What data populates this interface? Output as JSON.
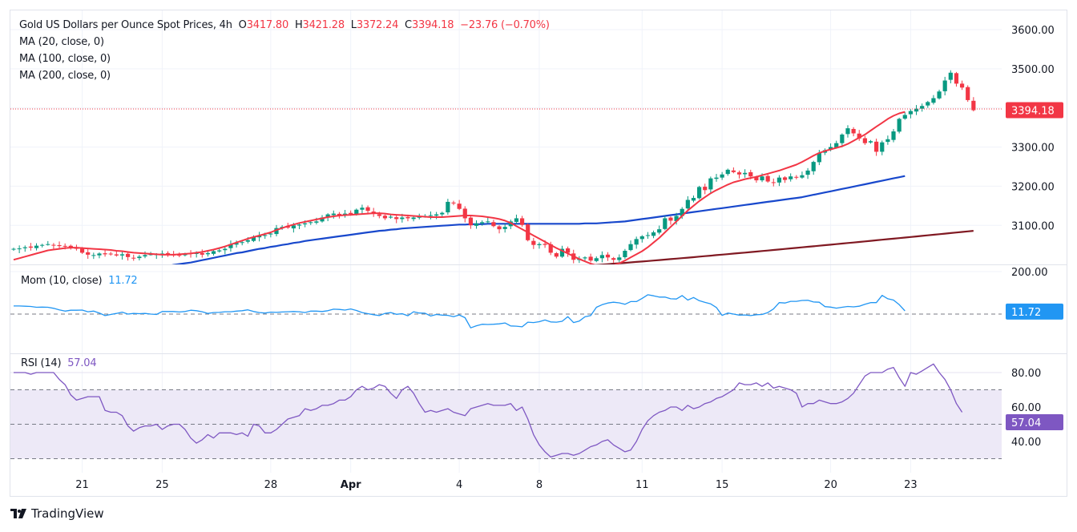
{
  "header": {
    "title": "Gold US Dollars per Ounce Spot Prices, 4h",
    "open_label": "O",
    "open": "3417.80",
    "high_label": "H",
    "high": "3421.28",
    "low_label": "L",
    "low": "3372.24",
    "close_label": "C",
    "close": "3394.18",
    "change": "−23.76 (−0.70%)",
    "indicators": [
      "MA (20, close, 0)",
      "MA (100, close, 0)",
      "MA (200, close, 0)"
    ]
  },
  "momentum": {
    "label": "Mom (10, close)",
    "value": "11.72"
  },
  "rsi": {
    "label": "RSI (14)",
    "value": "57.04"
  },
  "branding": {
    "name": "TradingView"
  },
  "colors": {
    "up": "#089981",
    "down": "#f23645",
    "ma20": "#f23645",
    "ma100": "#1848cc",
    "ma200": "#801922",
    "momentum": "#2196f3",
    "rsi": "#7e57c2",
    "rsi_band": "#ede9f7"
  },
  "chart_data": [
    {
      "type": "candlestick",
      "title": "Gold US Dollars per Ounce Spot Prices, 4h",
      "ylabel": "Price (USD)",
      "ylim": [
        3000,
        3620
      ],
      "yticks": [
        "3600.00",
        "3500.00",
        "3400.00",
        "3300.00",
        "3200.00",
        "3100.00"
      ],
      "yticks_visible": [
        "3600.00",
        "3500.00",
        "3300.00",
        "3200.00",
        "3100.00"
      ],
      "xticks": [
        {
          "label": "21",
          "bold": false,
          "index": 12
        },
        {
          "label": "25",
          "bold": false,
          "index": 26
        },
        {
          "label": "28",
          "bold": false,
          "index": 45
        },
        {
          "label": "Apr",
          "bold": true,
          "index": 59
        },
        {
          "label": "4",
          "bold": false,
          "index": 78
        },
        {
          "label": "8",
          "bold": false,
          "index": 92
        },
        {
          "label": "11",
          "bold": false,
          "index": 110
        },
        {
          "label": "15",
          "bold": false,
          "index": 124
        },
        {
          "label": "20",
          "bold": false,
          "index": 143
        },
        {
          "label": "23",
          "bold": false,
          "index": 157
        }
      ],
      "last_price": "3394.18",
      "closes": [
        3040,
        3041,
        3044,
        3043,
        3048,
        3050,
        3052,
        3050,
        3047,
        3046,
        3044,
        3040,
        3030,
        3025,
        3024,
        3028,
        3026,
        3027,
        3023,
        3026,
        3019,
        3017,
        3020,
        3024,
        3026,
        3026,
        3028,
        3027,
        3025,
        3023,
        3027,
        3028,
        3029,
        3025,
        3029,
        3034,
        3036,
        3040,
        3052,
        3055,
        3057,
        3062,
        3070,
        3074,
        3075,
        3079,
        3093,
        3096,
        3094,
        3100,
        3102,
        3105,
        3108,
        3110,
        3120,
        3128,
        3130,
        3125,
        3130,
        3129,
        3140,
        3145,
        3137,
        3129,
        3124,
        3118,
        3122,
        3116,
        3120,
        3118,
        3120,
        3122,
        3124,
        3126,
        3128,
        3132,
        3160,
        3156,
        3142,
        3118,
        3100,
        3105,
        3108,
        3110,
        3098,
        3090,
        3096,
        3110,
        3118,
        3101,
        3062,
        3050,
        3052,
        3050,
        3030,
        3020,
        3040,
        3030,
        3012,
        3015,
        3018,
        3010,
        3016,
        3024,
        3018,
        3012,
        3018,
        3035,
        3052,
        3065,
        3072,
        3075,
        3082,
        3090,
        3118,
        3112,
        3124,
        3142,
        3165,
        3170,
        3198,
        3190,
        3220,
        3222,
        3230,
        3242,
        3236,
        3230,
        3234,
        3225,
        3215,
        3225,
        3212,
        3210,
        3222,
        3216,
        3225,
        3222,
        3228,
        3240,
        3262,
        3285,
        3292,
        3300,
        3310,
        3332,
        3348,
        3335,
        3322,
        3310,
        3315,
        3288,
        3312,
        3320,
        3340,
        3372,
        3382,
        3392,
        3398,
        3405,
        3415,
        3425,
        3442,
        3470,
        3490,
        3462,
        3452,
        3420,
        3394.18
      ],
      "series": [
        {
          "name": "MA (20, close, 0)",
          "color": "#f23645"
        },
        {
          "name": "MA (100, close, 0)",
          "color": "#1848cc"
        },
        {
          "name": "MA (200, close, 0)",
          "color": "#801922"
        }
      ],
      "ma20": [
        3012,
        3016,
        3020,
        3024,
        3028,
        3032,
        3036,
        3038,
        3040,
        3042,
        3043,
        3043,
        3042,
        3041,
        3040,
        3039,
        3038,
        3037,
        3035,
        3034,
        3032,
        3030,
        3029,
        3028,
        3027,
        3026,
        3025,
        3025,
        3025,
        3026,
        3027,
        3028,
        3030,
        3032,
        3035,
        3038,
        3042,
        3046,
        3051,
        3056,
        3061,
        3066,
        3070,
        3074,
        3078,
        3082,
        3088,
        3093,
        3098,
        3102,
        3106,
        3109,
        3112,
        3115,
        3118,
        3121,
        3123,
        3125,
        3126,
        3127,
        3128,
        3129,
        3130,
        3131,
        3131,
        3130,
        3128,
        3127,
        3126,
        3125,
        3124,
        3123,
        3122,
        3121,
        3121,
        3121,
        3122,
        3123,
        3124,
        3125,
        3125,
        3124,
        3123,
        3121,
        3119,
        3116,
        3112,
        3106,
        3098,
        3090,
        3082,
        3074,
        3066,
        3058,
        3050,
        3042,
        3035,
        3028,
        3021,
        3014,
        3008,
        3002,
        2998,
        2996,
        2996,
        2998,
        3003,
        3010,
        3018,
        3026,
        3034,
        3044,
        3056,
        3068,
        3082,
        3096,
        3110,
        3124,
        3138,
        3150,
        3162,
        3172,
        3182,
        3190,
        3197,
        3204,
        3210,
        3214,
        3218,
        3221,
        3224,
        3228,
        3232,
        3236,
        3240,
        3245,
        3250,
        3255,
        3262,
        3270,
        3278,
        3285,
        3290,
        3294,
        3298,
        3302,
        3308,
        3316,
        3324,
        3332,
        3342,
        3352,
        3362,
        3372,
        3380,
        3386,
        3390
      ],
      "ma100": [
        2900,
        2902,
        2905,
        2908,
        2911,
        2914,
        2917,
        2920,
        2923,
        2926,
        2930,
        2934,
        2938,
        2942,
        2946,
        2950,
        2954,
        2958,
        2962,
        2966,
        2970,
        2974,
        2978,
        2982,
        2986,
        2990,
        2993,
        2996,
        2999,
        3001,
        3003,
        3005,
        3008,
        3011,
        3014,
        3017,
        3020,
        3023,
        3026,
        3029,
        3031,
        3034,
        3037,
        3040,
        3042,
        3045,
        3047,
        3050,
        3052,
        3055,
        3057,
        3060,
        3062,
        3064,
        3066,
        3068,
        3070,
        3072,
        3074,
        3076,
        3078,
        3080,
        3082,
        3084,
        3086,
        3087,
        3089,
        3090,
        3092,
        3093,
        3094,
        3095,
        3096,
        3097,
        3098,
        3099,
        3100,
        3101,
        3102,
        3102,
        3103,
        3103,
        3103,
        3104,
        3104,
        3104,
        3104,
        3104,
        3104,
        3104,
        3104,
        3104,
        3104,
        3104,
        3104,
        3104,
        3104,
        3104,
        3104,
        3104,
        3105,
        3105,
        3105,
        3106,
        3107,
        3108,
        3109,
        3110,
        3112,
        3114,
        3116,
        3118,
        3120,
        3122,
        3124,
        3126,
        3128,
        3130,
        3132,
        3134,
        3136,
        3138,
        3140,
        3142,
        3144,
        3146,
        3148,
        3150,
        3152,
        3154,
        3156,
        3158,
        3160,
        3162,
        3164,
        3166,
        3168,
        3170,
        3172,
        3175,
        3178,
        3181,
        3184,
        3187,
        3190,
        3193,
        3196,
        3199,
        3202,
        3205,
        3208,
        3211,
        3214,
        3217,
        3220,
        3223,
        3226
      ],
      "ma200_visible_range": [
        2998,
        3086
      ]
    },
    {
      "type": "line",
      "title": "Mom (10, close)",
      "ylim": [
        -200,
        210
      ],
      "yticks": [
        "200.00"
      ],
      "reference_line": 0,
      "last_value": "11.72",
      "values": [
        38,
        38,
        37,
        36,
        32,
        33,
        32,
        27,
        20,
        14,
        18,
        18,
        19,
        11,
        14,
        5,
        -7,
        -2,
        3,
        9,
        0,
        3,
        2,
        3,
        0,
        -2,
        12,
        12,
        12,
        10,
        12,
        18,
        16,
        11,
        3,
        7,
        8,
        11,
        11,
        14,
        16,
        20,
        12,
        7,
        5,
        9,
        8,
        10,
        11,
        12,
        11,
        7,
        14,
        14,
        12,
        16,
        23,
        22,
        19,
        24,
        17,
        7,
        2,
        -3,
        -7,
        3,
        7,
        -1,
        2,
        -8,
        11,
        5,
        4,
        -9,
        -2,
        -5,
        -6,
        -12,
        -4,
        -17,
        -65,
        -55,
        -48,
        -49,
        -48,
        -46,
        -42,
        -56,
        -57,
        -60,
        -38,
        -40,
        -36,
        -28,
        -37,
        -38,
        -34,
        -12,
        -40,
        -33,
        -13,
        -7,
        32,
        44,
        52,
        56,
        53,
        46,
        59,
        59,
        74,
        91,
        86,
        80,
        80,
        72,
        71,
        87,
        66,
        78,
        63,
        55,
        48,
        31,
        -6,
        5,
        0,
        -5,
        -4,
        -7,
        -3,
        -2,
        7,
        24,
        54,
        52,
        60,
        60,
        64,
        65,
        57,
        56,
        35,
        33,
        28,
        32,
        36,
        34,
        37,
        46,
        54,
        54,
        88,
        72,
        66,
        44,
        15
      ]
    },
    {
      "type": "line",
      "title": "RSI (14)",
      "ylim": [
        25,
        89
      ],
      "yticks": [
        "80.00",
        "60.00",
        "40.00"
      ],
      "reference_lines": [
        70,
        50,
        30
      ],
      "band": [
        30,
        70
      ],
      "last_value": "57.04",
      "values": [
        80,
        80,
        80,
        79,
        80,
        80,
        80,
        80,
        76,
        73,
        67,
        64,
        65,
        66,
        66,
        66,
        58,
        57,
        57,
        55,
        49,
        46,
        48,
        49,
        49,
        50,
        47,
        49,
        50,
        50,
        47,
        42,
        39,
        41,
        44,
        42,
        45,
        45,
        45,
        44,
        45,
        43,
        50,
        49,
        45,
        45,
        47,
        50,
        53,
        54,
        55,
        59,
        58,
        59,
        61,
        61,
        62,
        64,
        64,
        66,
        70,
        72,
        70,
        71,
        73,
        72,
        68,
        65,
        70,
        72,
        68,
        62,
        57,
        58,
        57,
        58,
        59,
        57,
        56,
        55,
        59,
        60,
        61,
        62,
        61,
        61,
        61,
        62,
        58,
        60,
        53,
        44,
        38,
        34,
        31,
        32,
        33,
        33,
        32,
        33,
        35,
        37,
        38,
        40,
        41,
        38,
        36,
        34,
        35,
        40,
        47,
        52,
        55,
        57,
        58,
        60,
        60,
        58,
        61,
        59,
        60,
        62,
        63,
        65,
        66,
        68,
        70,
        74,
        73,
        73,
        74,
        72,
        74,
        71,
        72,
        71,
        70,
        68,
        60,
        62,
        62,
        64,
        63,
        62,
        62,
        63,
        65,
        68,
        73,
        78,
        80,
        80,
        80,
        82,
        83,
        77,
        72,
        80,
        79,
        81,
        83,
        85,
        80,
        76,
        70,
        62,
        57
      ]
    }
  ]
}
